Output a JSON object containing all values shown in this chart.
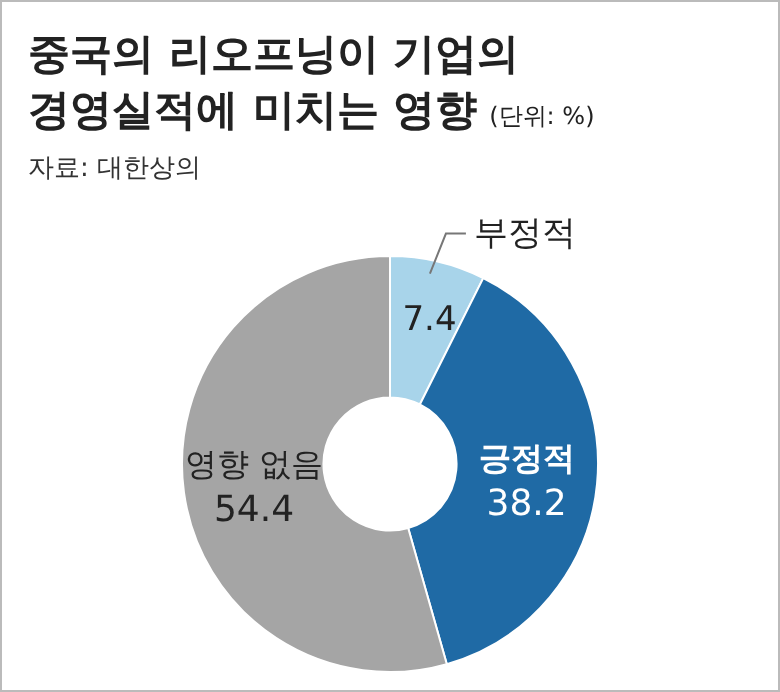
{
  "chart_data": {
    "type": "donut",
    "title": "중국의 리오프닝이 기업의\n경영실적에 미치는 영향",
    "subtitle": "(단위: %)",
    "annotations": [
      "자료: 대한상의"
    ],
    "categories": [
      "부정적",
      "긍정적",
      "영향 없음"
    ],
    "values": [
      7.4,
      38.2,
      54.4
    ],
    "colors": [
      "#a8d4ea",
      "#1f6aa5",
      "#a5a5a5"
    ],
    "data_labels": true
  }
}
